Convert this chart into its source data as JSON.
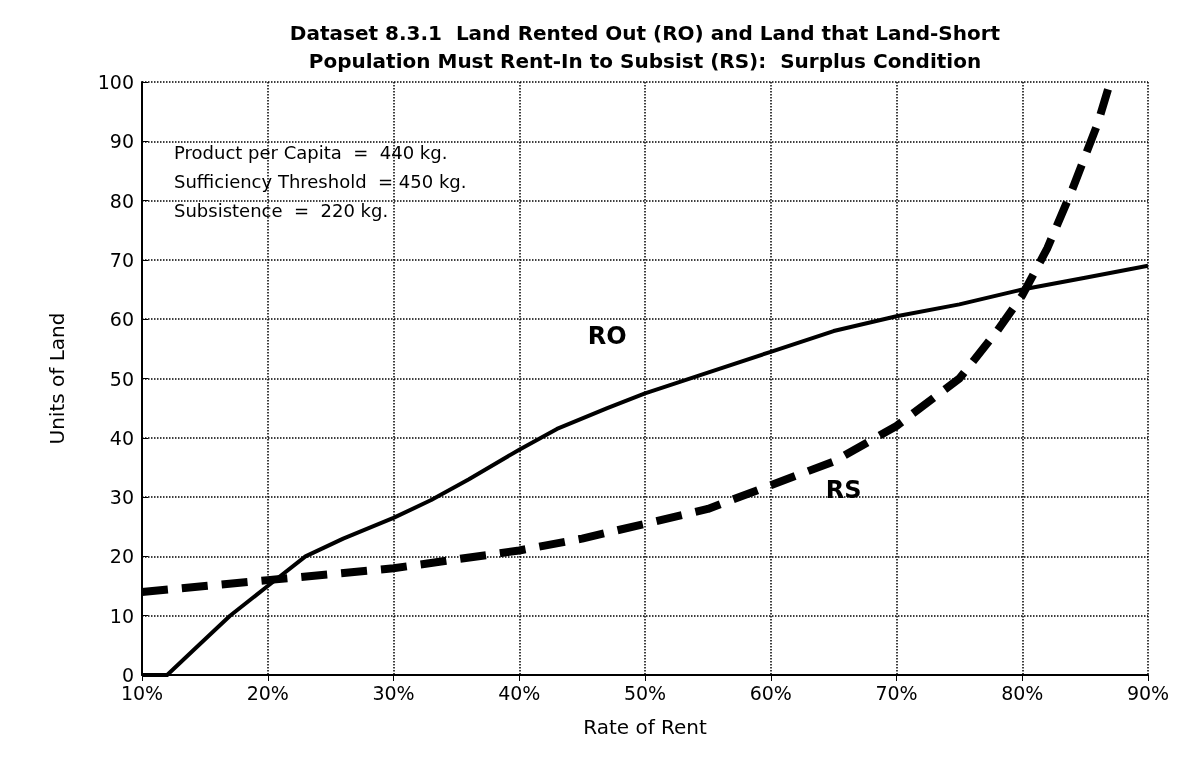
{
  "chart_data": {
    "type": "line",
    "title": "Dataset 8.3.1  Land Rented Out (RO) and Land that Land-Short\nPopulation Must Rent-In to Subsist (RS):  Surplus Condition",
    "xlabel": "Rate of Rent",
    "ylabel": "Units of Land",
    "xlim": [
      10,
      90
    ],
    "xticks": [
      {
        "value": 10,
        "label": "10%"
      },
      {
        "value": 20,
        "label": "20%"
      },
      {
        "value": 30,
        "label": "30%"
      },
      {
        "value": 40,
        "label": "40%"
      },
      {
        "value": 50,
        "label": "50%"
      },
      {
        "value": 60,
        "label": "60%"
      },
      {
        "value": 70,
        "label": "70%"
      },
      {
        "value": 80,
        "label": "80%"
      },
      {
        "value": 90,
        "label": "90%"
      }
    ],
    "ylim": [
      0,
      100
    ],
    "yticks": [
      0,
      10,
      20,
      30,
      40,
      50,
      60,
      70,
      80,
      90,
      100
    ],
    "grid": true,
    "series": [
      {
        "name": "RO",
        "color": "#000000",
        "line_style": "solid",
        "x": [
          10,
          12,
          14,
          17,
          20,
          23,
          26,
          30,
          33,
          36,
          40,
          43,
          47,
          50,
          55,
          60,
          65,
          70,
          75,
          80,
          85,
          90
        ],
        "values": [
          0,
          0,
          4,
          10,
          15,
          20,
          23,
          26.5,
          29.5,
          33,
          38,
          41.5,
          45,
          47.5,
          51,
          54.5,
          58,
          60.5,
          62.5,
          65,
          67,
          69
        ]
      },
      {
        "name": "RS",
        "color": "#000000",
        "line_style": "dashed",
        "x": [
          10,
          15,
          20,
          25,
          30,
          35,
          40,
          45,
          50,
          55,
          60,
          65,
          70,
          75,
          78,
          80,
          82,
          84,
          86,
          87
        ],
        "values": [
          14,
          15,
          16,
          17,
          18,
          19.5,
          21,
          23,
          25.5,
          28,
          32,
          36,
          42,
          50,
          58,
          64,
          72,
          82,
          93,
          100
        ]
      }
    ],
    "annotations": [
      "Product per Capita  =  440 kg.",
      "Sufficiency Threshold  = 450 kg.",
      "Subsistence  =  220 kg."
    ]
  }
}
